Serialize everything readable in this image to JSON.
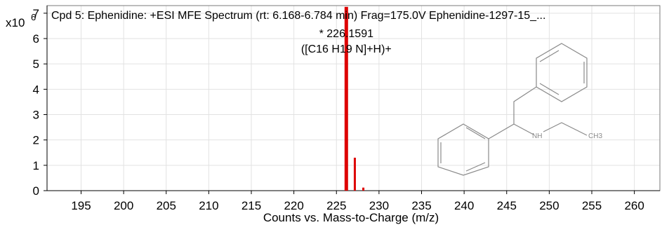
{
  "chart_data": {
    "type": "bar",
    "title": "Cpd 5: Ephenidine: +ESI MFE Spectrum (rt: 6.168-6.784 min) Frag=175.0V Ephenidine-1297-15_...",
    "xlabel": "Counts vs. Mass-to-Charge (m/z)",
    "ylabel": "",
    "y_multiplier_label": "x10",
    "y_multiplier_exponent": "6",
    "xlim": [
      191,
      263
    ],
    "ylim": [
      0,
      7.3
    ],
    "x_ticks": [
      "195",
      "200",
      "205",
      "210",
      "215",
      "220",
      "225",
      "230",
      "235",
      "240",
      "245",
      "250",
      "255",
      "260"
    ],
    "y_ticks": [
      "0",
      "1",
      "2",
      "3",
      "4",
      "5",
      "6",
      "7"
    ],
    "grid": true,
    "series": [
      {
        "x": [
          226.1591,
          227.16,
          228.16
        ],
        "values": [
          7.25,
          1.3,
          0.12
        ],
        "color": "#dd0000"
      }
    ],
    "annotations": [
      {
        "x": 226.1591,
        "line1": "* 226.1591",
        "line2": "([C16 H19 N]+H)+"
      }
    ],
    "structure_labels": {
      "nh": "NH",
      "ch3": "CH3"
    }
  }
}
